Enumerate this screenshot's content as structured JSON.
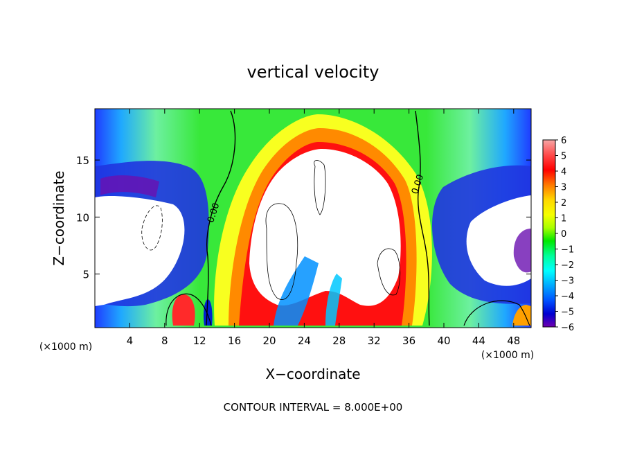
{
  "chart_data": {
    "type": "heatmap",
    "title": "vertical velocity",
    "xlabel": "X−coordinate",
    "ylabel": "Z−coordinate",
    "x_unit_label": "(×1000 m)",
    "x_unit_label_right": "(×1000 m)",
    "footer": "CONTOUR INTERVAL = 8.000E+00",
    "xlim": [
      0,
      50
    ],
    "ylim": [
      0.3,
      19.5
    ],
    "xticks": [
      4,
      8,
      12,
      16,
      20,
      24,
      28,
      32,
      36,
      40,
      44,
      48
    ],
    "yticks": [
      5,
      10,
      15
    ],
    "colorbar": {
      "ticks": [
        6,
        5,
        4,
        3,
        2,
        1,
        0,
        -1,
        -2,
        -3,
        -4,
        -5,
        -6
      ],
      "range": [
        -6,
        6
      ],
      "colors": [
        "#f7a6a6",
        "#ff4b4b",
        "#ff0000",
        "#ff7800",
        "#ffd700",
        "#f5ff00",
        "#a8ff00",
        "#00e800",
        "#00ff9a",
        "#00ffff",
        "#00a8ff",
        "#0050ff",
        "#0000d0",
        "#7000b0"
      ]
    },
    "contour_labels": [
      {
        "text": "0.00",
        "x": 13.9,
        "y": 10.3
      },
      {
        "text": "0.00",
        "x": 37.3,
        "y": 12.8
      }
    ],
    "grid": false
  }
}
